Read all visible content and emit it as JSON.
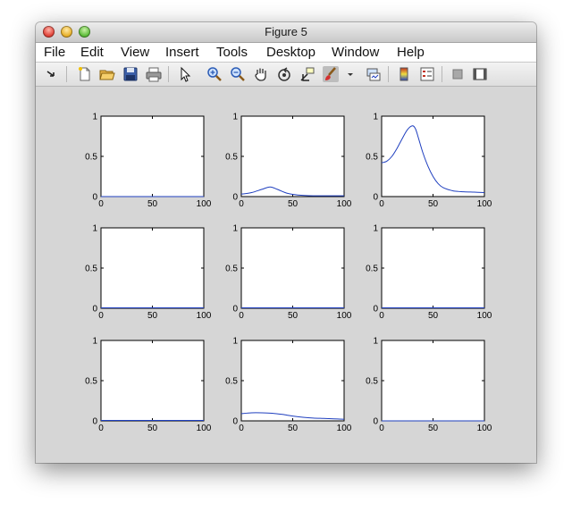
{
  "window": {
    "title": "Figure 5"
  },
  "menu": {
    "items": [
      "File",
      "Edit",
      "View",
      "Insert",
      "Tools",
      "Desktop",
      "Window",
      "Help"
    ]
  },
  "toolbar": {
    "buttons": [
      "dock-arrow-icon",
      "new-figure-icon",
      "open-file-icon",
      "save-icon",
      "print-icon",
      "pointer-icon",
      "zoom-in-icon",
      "zoom-out-icon",
      "pan-hand-icon",
      "rotate-3d-icon",
      "data-cursor-icon",
      "brush-icon",
      "brush-dropdown-icon",
      "link-plot-icon",
      "colorbar-icon",
      "legend-icon",
      "hide-plot-tools-icon",
      "show-plot-tools-icon"
    ]
  },
  "colors": {
    "line": "#1f3fbf",
    "axes_bg": "#ffffff",
    "figure_bg": "#d6d6d6"
  },
  "chart_data": {
    "type": "line",
    "layout": "3x3 grid of subplots",
    "xlim": [
      0,
      100
    ],
    "ylim": [
      0,
      1
    ],
    "xticks": [
      "0",
      "50",
      "100"
    ],
    "yticks": [
      "0",
      "0.5",
      "1"
    ],
    "subplots": [
      {
        "x": [
          0,
          100
        ],
        "y": [
          0,
          0
        ]
      },
      {
        "x": [
          0,
          10,
          20,
          28,
          35,
          45,
          55,
          70,
          85,
          100
        ],
        "y": [
          0.03,
          0.05,
          0.09,
          0.12,
          0.09,
          0.04,
          0.02,
          0.01,
          0.01,
          0.01
        ]
      },
      {
        "x": [
          0,
          5,
          10,
          15,
          20,
          25,
          30,
          33,
          36,
          40,
          45,
          50,
          55,
          60,
          70,
          80,
          90,
          100
        ],
        "y": [
          0.42,
          0.44,
          0.5,
          0.6,
          0.72,
          0.83,
          0.88,
          0.84,
          0.72,
          0.55,
          0.38,
          0.25,
          0.16,
          0.11,
          0.07,
          0.06,
          0.055,
          0.05
        ]
      },
      {
        "x": [
          0,
          100
        ],
        "y": [
          0.005,
          0.005
        ]
      },
      {
        "x": [
          0,
          100
        ],
        "y": [
          0.005,
          0.005
        ]
      },
      {
        "x": [
          0,
          100
        ],
        "y": [
          0.005,
          0.005
        ]
      },
      {
        "x": [
          0,
          100
        ],
        "y": [
          0.005,
          0.005
        ]
      },
      {
        "x": [
          0,
          10,
          20,
          30,
          40,
          50,
          60,
          70,
          80,
          90,
          100
        ],
        "y": [
          0.09,
          0.1,
          0.1,
          0.095,
          0.08,
          0.06,
          0.045,
          0.035,
          0.03,
          0.025,
          0.02
        ]
      },
      {
        "x": [
          0,
          100
        ],
        "y": [
          0,
          0
        ]
      }
    ]
  }
}
